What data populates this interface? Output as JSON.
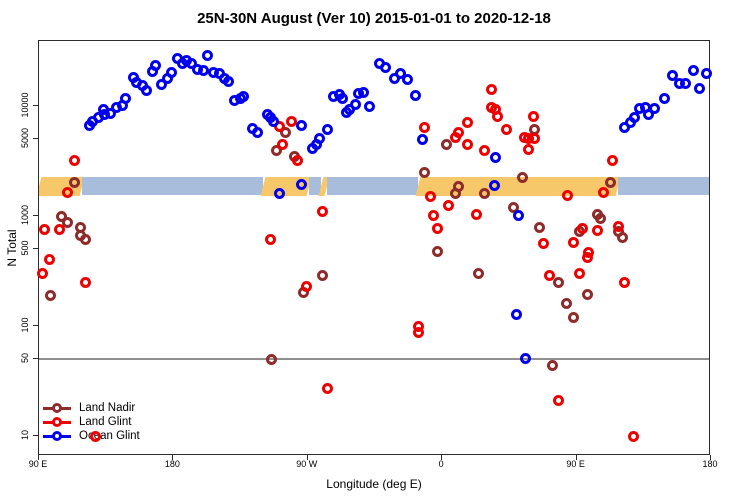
{
  "chart_data": {
    "type": "scatter",
    "title": "25N-30N August (Ver 10)   2015-01-01 to 2020-12-18",
    "xlabel": "Longitude (deg E)",
    "ylabel": "N Total",
    "x_range": [
      90,
      540
    ],
    "y_scale": "log",
    "y_range": [
      8,
      39000
    ],
    "grid": "off",
    "legend_position": "bottom-left-inside",
    "x_ticks": [
      {
        "lon": 90,
        "label": "90 E"
      },
      {
        "lon": 180,
        "label": "180"
      },
      {
        "lon": 270,
        "label": "90 W"
      },
      {
        "lon": 360,
        "label": "0"
      },
      {
        "lon": 450,
        "label": "90 E"
      },
      {
        "lon": 540,
        "label": "180"
      }
    ],
    "y_ticks": [
      {
        "v": 10,
        "label": "10"
      },
      {
        "v": 50,
        "label": "50"
      },
      {
        "v": 100,
        "label": "100"
      },
      {
        "v": 500,
        "label": "500"
      },
      {
        "v": 1000,
        "label": "1000"
      },
      {
        "v": 5000,
        "label": "5000"
      },
      {
        "v": 10000,
        "label": "10000"
      }
    ],
    "reference_line": {
      "value": 50,
      "color": "#8f8f8f"
    },
    "reference_band": {
      "value_range": [
        1560,
        2260
      ],
      "colors": {
        "orange": "#F6C86A",
        "blue": "#A8BCDB"
      },
      "segments": [
        {
          "color": "orange",
          "from": 90,
          "to": 119
        },
        {
          "color": "blue",
          "from": 119,
          "to": 240
        },
        {
          "color": "orange",
          "from": 240,
          "to": 271
        },
        {
          "color": "blue",
          "from": 271,
          "to": 279
        },
        {
          "color": "orange",
          "from": 279,
          "to": 283
        },
        {
          "color": "blue",
          "from": 283,
          "to": 344
        },
        {
          "color": "orange",
          "from": 344,
          "to": 478
        },
        {
          "color": "blue",
          "from": 478,
          "to": 540
        }
      ]
    },
    "series": [
      {
        "name": "Land Nadir",
        "color": "#8E2B2B",
        "points": [
          [
            114,
            2000
          ],
          [
            105,
            1000
          ],
          [
            109,
            880
          ],
          [
            118,
            780
          ],
          [
            118,
            670
          ],
          [
            121,
            610
          ],
          [
            98,
            190
          ],
          [
            255,
            5800
          ],
          [
            249,
            3900
          ],
          [
            261,
            3500
          ],
          [
            280,
            290
          ],
          [
            267,
            200
          ],
          [
            246,
            50
          ],
          [
            363,
            4500
          ],
          [
            348,
            2500
          ],
          [
            422,
            6100
          ],
          [
            414,
            2250
          ],
          [
            371,
            1870
          ],
          [
            369,
            1600
          ],
          [
            388,
            1600
          ],
          [
            408,
            1200
          ],
          [
            425,
            790
          ],
          [
            357,
            475
          ],
          [
            384,
            300
          ],
          [
            438,
            250
          ],
          [
            434,
            44
          ],
          [
            457,
            195
          ],
          [
            443,
            160
          ],
          [
            448,
            120
          ],
          [
            464,
            1040
          ],
          [
            466,
            940
          ],
          [
            452,
            720
          ],
          [
            478,
            720
          ],
          [
            481,
            640
          ],
          [
            473,
            2000
          ]
        ]
      },
      {
        "name": "Land Glint",
        "color": "#EE0000",
        "points": [
          [
            114,
            3200
          ],
          [
            109,
            1650
          ],
          [
            104,
            760
          ],
          [
            94,
            750
          ],
          [
            97,
            400
          ],
          [
            92,
            300
          ],
          [
            121,
            250
          ],
          [
            128,
            10
          ],
          [
            259,
            7200
          ],
          [
            251,
            6500
          ],
          [
            253,
            4500
          ],
          [
            263,
            3200
          ],
          [
            280,
            1100
          ],
          [
            245,
            610
          ],
          [
            269,
            230
          ],
          [
            283,
            27
          ],
          [
            348,
            6400
          ],
          [
            393,
            14000
          ],
          [
            393,
            9600
          ],
          [
            396,
            9200
          ],
          [
            397,
            8000
          ],
          [
            377,
            7100
          ],
          [
            371,
            5800
          ],
          [
            369,
            5200
          ],
          [
            377,
            4500
          ],
          [
            403,
            6100
          ],
          [
            421,
            8000
          ],
          [
            415,
            5200
          ],
          [
            418,
            5100
          ],
          [
            422,
            5100
          ],
          [
            418,
            4000
          ],
          [
            388,
            3900
          ],
          [
            352,
            1500
          ],
          [
            364,
            1240
          ],
          [
            354,
            1020
          ],
          [
            383,
            1040
          ],
          [
            357,
            770
          ],
          [
            428,
            560
          ],
          [
            344,
            98
          ],
          [
            344,
            88
          ],
          [
            438,
            21
          ],
          [
            474,
            3200
          ],
          [
            468,
            1620
          ],
          [
            444,
            1520
          ],
          [
            454,
            770
          ],
          [
            464,
            740
          ],
          [
            478,
            810
          ],
          [
            448,
            570
          ],
          [
            458,
            470
          ],
          [
            457,
            420
          ],
          [
            452,
            300
          ],
          [
            482,
            250
          ],
          [
            432,
            290
          ],
          [
            488,
            10
          ]
        ]
      },
      {
        "name": "Ocean Glint",
        "color": "#0000EE",
        "points": [
          [
            124,
            6600
          ],
          [
            126,
            7300
          ],
          [
            130,
            7900
          ],
          [
            133,
            9200
          ],
          [
            134,
            8400
          ],
          [
            138,
            8500
          ],
          [
            142,
            9700
          ],
          [
            146,
            10100
          ],
          [
            148,
            11700
          ],
          [
            153,
            18300
          ],
          [
            155,
            16200
          ],
          [
            159,
            15200
          ],
          [
            162,
            13900
          ],
          [
            166,
            20600
          ],
          [
            168,
            23300
          ],
          [
            172,
            15800
          ],
          [
            176,
            17900
          ],
          [
            179,
            20100
          ],
          [
            183,
            27100
          ],
          [
            186,
            24200
          ],
          [
            189,
            25800
          ],
          [
            192,
            24200
          ],
          [
            196,
            21300
          ],
          [
            200,
            20900
          ],
          [
            203,
            29000
          ],
          [
            207,
            20100
          ],
          [
            211,
            19700
          ],
          [
            214,
            17700
          ],
          [
            217,
            16600
          ],
          [
            221,
            11300
          ],
          [
            225,
            11800
          ],
          [
            227,
            12100
          ],
          [
            233,
            6300
          ],
          [
            236,
            5800
          ],
          [
            243,
            8300
          ],
          [
            245,
            7800
          ],
          [
            247,
            7300
          ],
          [
            266,
            6700
          ],
          [
            273,
            4100
          ],
          [
            276,
            4500
          ],
          [
            278,
            5100
          ],
          [
            283,
            6100
          ],
          [
            287,
            12100
          ],
          [
            291,
            12600
          ],
          [
            293,
            11600
          ],
          [
            296,
            8800
          ],
          [
            298,
            9200
          ],
          [
            302,
            10400
          ],
          [
            304,
            12900
          ],
          [
            307,
            13200
          ],
          [
            311,
            9800
          ],
          [
            318,
            24200
          ],
          [
            322,
            22200
          ],
          [
            328,
            17700
          ],
          [
            332,
            19600
          ],
          [
            337,
            17300
          ],
          [
            342,
            12400
          ],
          [
            347,
            5000
          ],
          [
            396,
            3400
          ],
          [
            395,
            1900
          ],
          [
            411,
            1020
          ],
          [
            410,
            126
          ],
          [
            416,
            51
          ],
          [
            251,
            1600
          ],
          [
            266,
            1950
          ],
          [
            482,
            6400
          ],
          [
            486,
            7100
          ],
          [
            489,
            7800
          ],
          [
            492,
            9400
          ],
          [
            496,
            9600
          ],
          [
            498,
            8400
          ],
          [
            502,
            9400
          ],
          [
            509,
            11700
          ],
          [
            514,
            18800
          ],
          [
            519,
            16000
          ],
          [
            523,
            16000
          ],
          [
            528,
            21100
          ],
          [
            532,
            14400
          ],
          [
            537,
            19600
          ]
        ]
      }
    ]
  }
}
